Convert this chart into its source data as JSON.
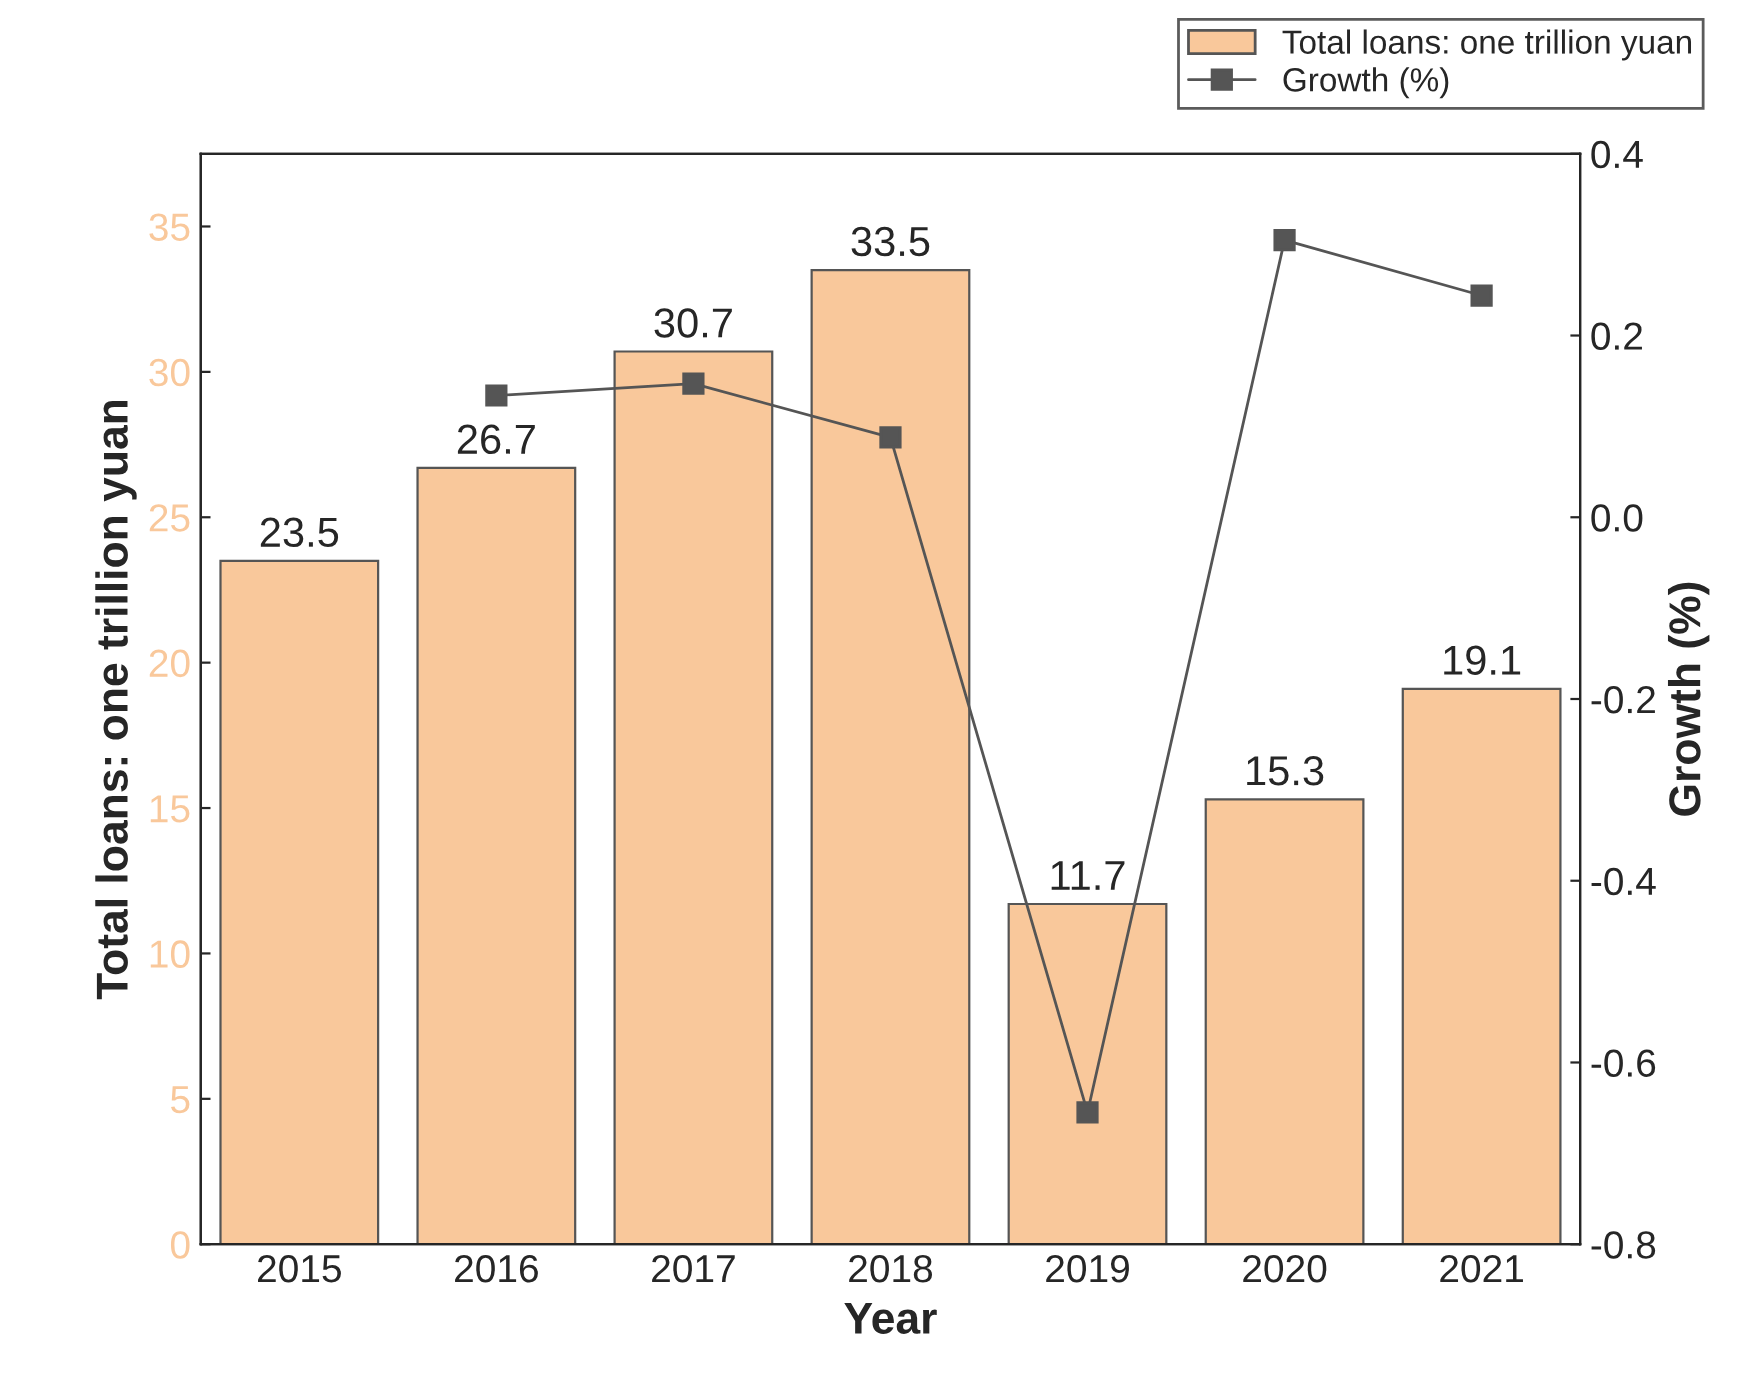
{
  "chart_data": {
    "type": "bar",
    "xlabel": "Year",
    "ylabel": "Total loans: one trillion yuan",
    "y2label": "Growth (%)",
    "categories": [
      "2015",
      "2016",
      "2017",
      "2018",
      "2019",
      "2020",
      "2021"
    ],
    "series": [
      {
        "name": "Total loans: one trillion yuan",
        "color": "#f9c89b",
        "values": [
          23.5,
          26.7,
          30.7,
          33.5,
          11.7,
          15.3,
          19.1
        ],
        "value_labels": [
          "23.5",
          "26.7",
          "30.7",
          "33.5",
          "11.7",
          "15.3",
          "19.1"
        ]
      },
      {
        "name": "Growth (%)",
        "type": "line",
        "axis": "y2",
        "color": "#555555",
        "marker": "square",
        "values": [
          null,
          0.134,
          0.147,
          0.088,
          -0.655,
          0.305,
          0.244
        ]
      }
    ],
    "ylim": [
      0,
      37.5
    ],
    "yticks": [
      0,
      5,
      10,
      15,
      20,
      25,
      30,
      35
    ],
    "y2lim": [
      -0.8,
      0.4
    ],
    "y2ticks": [
      {
        "value": -0.8,
        "label": "-0.8"
      },
      {
        "value": -0.6,
        "label": "-0.6"
      },
      {
        "value": -0.4,
        "label": "-0.4"
      },
      {
        "value": -0.2,
        "label": "-0.2"
      },
      {
        "value": 0.0,
        "label": "0.0"
      },
      {
        "value": 0.2,
        "label": "0.2"
      },
      {
        "value": 0.4,
        "label": "0.4"
      }
    ],
    "legend": "top right",
    "grid": false
  }
}
